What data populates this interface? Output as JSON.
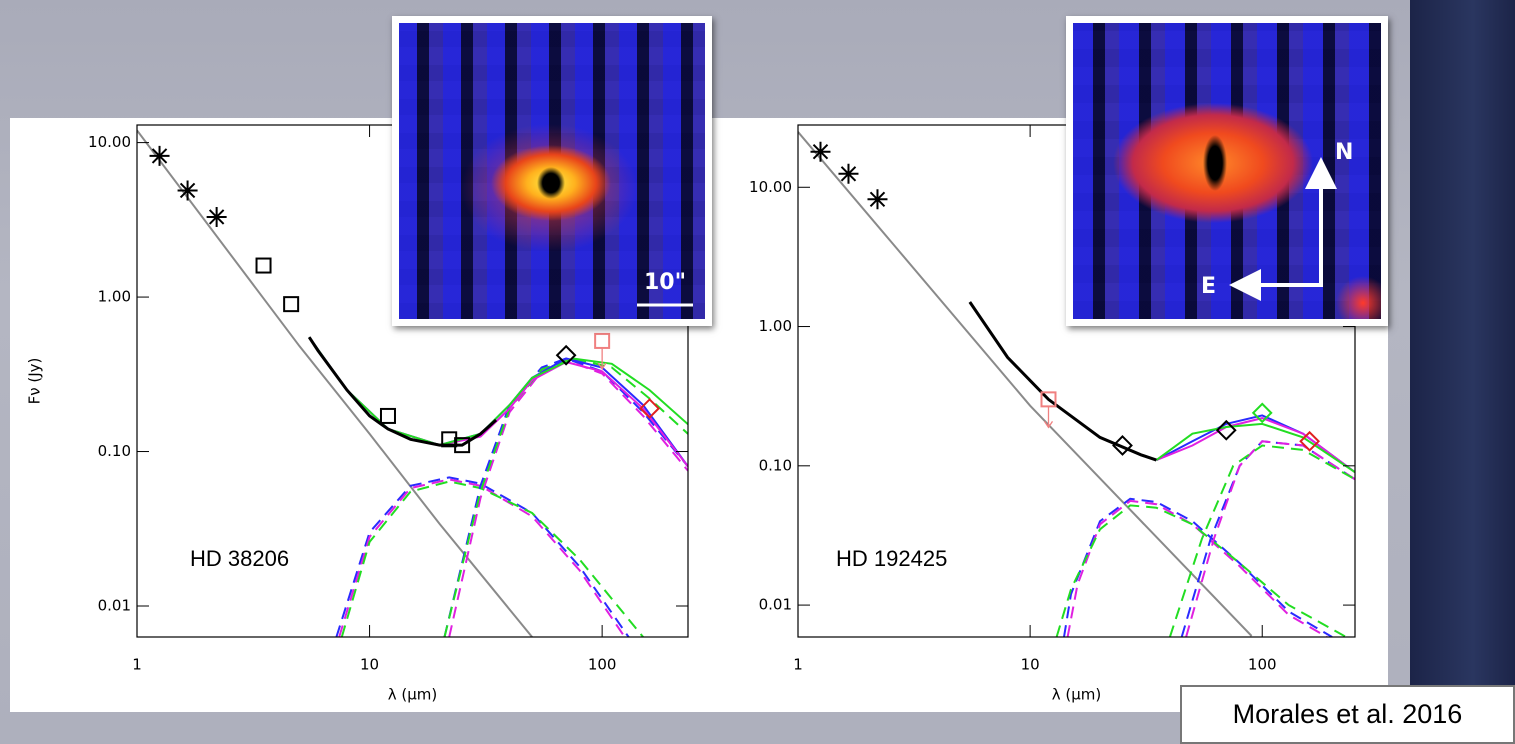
{
  "chart_data": [
    {
      "type": "line",
      "xlabel": "λ (μm)",
      "ylabel": "Fν (Jy)",
      "annotation": "HD 38206",
      "xscale": "log",
      "yscale": "log",
      "xlim": [
        1,
        234
      ],
      "ylim": [
        0.0063,
        13
      ],
      "xticks": [
        1,
        10,
        100
      ],
      "yticks": [
        {
          "value": 10,
          "label": "10.00"
        },
        {
          "value": 1,
          "label": "1.00"
        },
        {
          "value": 0.1,
          "label": "0.10"
        },
        {
          "value": 0.01,
          "label": "0.01"
        }
      ],
      "series": [
        {
          "color": "#8a8a8a",
          "style": "line",
          "x": [
            1,
            5,
            10,
            20,
            50
          ],
          "values": [
            12,
            0.48,
            0.13,
            0.034,
            0.0063
          ]
        },
        {
          "color": "#2a2aff",
          "style": "dashed",
          "x": [
            7.2,
            10,
            15,
            22,
            30,
            50,
            80,
            130
          ],
          "values": [
            0.0063,
            0.03,
            0.06,
            0.068,
            0.062,
            0.04,
            0.018,
            0.0063
          ]
        },
        {
          "color": "#e020e0",
          "style": "dashed",
          "x": [
            7.4,
            10,
            15,
            22,
            30,
            50,
            80,
            125
          ],
          "values": [
            0.0063,
            0.028,
            0.058,
            0.066,
            0.06,
            0.038,
            0.017,
            0.0063
          ]
        },
        {
          "color": "#22dd22",
          "style": "dashed",
          "x": [
            7.6,
            10,
            15,
            22,
            30,
            50,
            80,
            150
          ],
          "values": [
            0.0063,
            0.026,
            0.055,
            0.064,
            0.058,
            0.04,
            0.02,
            0.0063
          ]
        },
        {
          "color": "#2a2aff",
          "style": "dashed",
          "x": [
            21,
            30,
            40,
            55,
            70,
            100,
            150,
            234
          ],
          "values": [
            0.0063,
            0.06,
            0.2,
            0.35,
            0.4,
            0.33,
            0.18,
            0.08
          ]
        },
        {
          "color": "#e020e0",
          "style": "dashed",
          "x": [
            22,
            30,
            40,
            55,
            70,
            100,
            150,
            234
          ],
          "values": [
            0.0063,
            0.05,
            0.18,
            0.33,
            0.39,
            0.32,
            0.17,
            0.075
          ]
        },
        {
          "color": "#22dd22",
          "style": "dashed",
          "x": [
            21,
            30,
            40,
            55,
            75,
            110,
            160,
            234
          ],
          "values": [
            0.0063,
            0.055,
            0.19,
            0.34,
            0.4,
            0.35,
            0.22,
            0.13
          ]
        },
        {
          "color": "#2a2aff",
          "style": "line",
          "x": [
            5.5,
            8,
            12,
            20,
            30,
            40,
            50,
            70,
            100,
            150,
            234
          ],
          "values": [
            0.55,
            0.25,
            0.14,
            0.11,
            0.13,
            0.2,
            0.3,
            0.4,
            0.35,
            0.2,
            0.08
          ]
        },
        {
          "color": "#e020e0",
          "style": "line",
          "x": [
            5.5,
            8,
            12,
            20,
            30,
            40,
            50,
            70,
            100,
            150,
            234
          ],
          "values": [
            0.55,
            0.25,
            0.14,
            0.11,
            0.125,
            0.19,
            0.29,
            0.38,
            0.33,
            0.19,
            0.08
          ]
        },
        {
          "color": "#22dd22",
          "style": "line",
          "x": [
            5.5,
            8,
            12,
            20,
            30,
            40,
            50,
            75,
            110,
            160,
            234
          ],
          "values": [
            0.55,
            0.25,
            0.14,
            0.11,
            0.13,
            0.2,
            0.3,
            0.4,
            0.37,
            0.25,
            0.15
          ]
        },
        {
          "color": "#000000",
          "style": "line",
          "x": [
            5.5,
            6,
            8,
            10,
            12,
            15,
            20,
            25,
            30,
            35
          ],
          "values": [
            0.55,
            0.45,
            0.25,
            0.17,
            0.14,
            0.12,
            0.11,
            0.11,
            0.13,
            0.16
          ]
        },
        {
          "color": "#000000",
          "style": "marker",
          "marker": "asterisk",
          "x": [
            1.25,
            1.65,
            2.2
          ],
          "values": [
            8.2,
            4.9,
            3.3
          ]
        },
        {
          "color": "#000000",
          "style": "marker",
          "marker": "square",
          "x": [
            3.5,
            4.6,
            12,
            22,
            25
          ],
          "values": [
            1.6,
            0.9,
            0.17,
            0.12,
            0.11
          ]
        },
        {
          "color": "#000000",
          "style": "marker",
          "marker": "diamond",
          "x": [
            70
          ],
          "values": [
            0.42
          ]
        },
        {
          "color": "#e02020",
          "style": "marker",
          "marker": "diamond",
          "x": [
            160
          ],
          "values": [
            0.19
          ]
        },
        {
          "color": "#f08080",
          "style": "marker",
          "marker": "square",
          "upper_limit": true,
          "x": [
            100
          ],
          "values": [
            0.52
          ]
        }
      ]
    },
    {
      "type": "line",
      "xlabel": "λ (μm)",
      "annotation": "HD 192425",
      "xscale": "log",
      "yscale": "log",
      "xlim": [
        1,
        251
      ],
      "ylim": [
        0.0059,
        28
      ],
      "xticks": [
        1,
        10,
        100
      ],
      "yticks": [
        {
          "value": 10,
          "label": "10.00"
        },
        {
          "value": 1,
          "label": "1.00"
        },
        {
          "value": 0.1,
          "label": "0.10"
        },
        {
          "value": 0.01,
          "label": "0.01"
        }
      ],
      "series": [
        {
          "color": "#8a8a8a",
          "style": "line",
          "x": [
            1,
            10,
            90
          ],
          "values": [
            25,
            0.27,
            0.006
          ]
        },
        {
          "color": "#2a2aff",
          "style": "dashed",
          "x": [
            14,
            15,
            20,
            27,
            35,
            50,
            80,
            130,
            200
          ],
          "values": [
            0.0059,
            0.012,
            0.04,
            0.058,
            0.055,
            0.04,
            0.02,
            0.009,
            0.0059
          ]
        },
        {
          "color": "#e020e0",
          "style": "dashed",
          "x": [
            14.5,
            16,
            20,
            27,
            35,
            50,
            80,
            130,
            190
          ],
          "values": [
            0.0059,
            0.014,
            0.038,
            0.056,
            0.053,
            0.038,
            0.019,
            0.0085,
            0.0059
          ]
        },
        {
          "color": "#22dd22",
          "style": "dashed",
          "x": [
            13,
            15,
            20,
            27,
            35,
            50,
            80,
            130,
            230
          ],
          "values": [
            0.0059,
            0.013,
            0.035,
            0.052,
            0.05,
            0.038,
            0.02,
            0.01,
            0.0059
          ]
        },
        {
          "color": "#2a2aff",
          "style": "dashed",
          "x": [
            45,
            60,
            80,
            100,
            150,
            251
          ],
          "values": [
            0.0059,
            0.03,
            0.1,
            0.15,
            0.14,
            0.08
          ]
        },
        {
          "color": "#e020e0",
          "style": "dashed",
          "x": [
            47,
            62,
            80,
            100,
            150,
            251
          ],
          "values": [
            0.0059,
            0.03,
            0.1,
            0.15,
            0.14,
            0.08
          ]
        },
        {
          "color": "#22dd22",
          "style": "dashed",
          "x": [
            40,
            55,
            75,
            100,
            150,
            251
          ],
          "values": [
            0.0059,
            0.03,
            0.1,
            0.14,
            0.13,
            0.08
          ]
        },
        {
          "color": "#2a2aff",
          "style": "line",
          "x": [
            35,
            50,
            70,
            100,
            150,
            251
          ],
          "values": [
            0.11,
            0.15,
            0.2,
            0.23,
            0.17,
            0.09
          ]
        },
        {
          "color": "#e020e0",
          "style": "line",
          "x": [
            35,
            50,
            70,
            100,
            150,
            251
          ],
          "values": [
            0.11,
            0.14,
            0.19,
            0.22,
            0.17,
            0.09
          ]
        },
        {
          "color": "#22dd22",
          "style": "line",
          "x": [
            35,
            50,
            70,
            100,
            150,
            251
          ],
          "values": [
            0.11,
            0.17,
            0.19,
            0.2,
            0.16,
            0.09
          ]
        },
        {
          "color": "#000000",
          "style": "line",
          "x": [
            5.5,
            8,
            12,
            20,
            30,
            35
          ],
          "values": [
            1.5,
            0.6,
            0.3,
            0.16,
            0.12,
            0.11
          ]
        },
        {
          "color": "#000000",
          "style": "marker",
          "marker": "asterisk",
          "x": [
            1.25,
            1.65,
            2.2
          ],
          "values": [
            18,
            12.5,
            8.2
          ]
        },
        {
          "color": "#000000",
          "style": "marker",
          "marker": "diamond",
          "x": [
            25,
            70
          ],
          "values": [
            0.14,
            0.18
          ]
        },
        {
          "color": "#22dd22",
          "style": "marker",
          "marker": "diamond",
          "x": [
            100
          ],
          "values": [
            0.24
          ]
        },
        {
          "color": "#e02020",
          "style": "marker",
          "marker": "diamond",
          "x": [
            160
          ],
          "values": [
            0.15
          ]
        },
        {
          "color": "#f08080",
          "style": "marker",
          "marker": "square",
          "upper_limit": true,
          "x": [
            12
          ],
          "values": [
            0.3
          ]
        }
      ]
    }
  ],
  "insets": [
    {
      "scale_label": "10\""
    },
    {
      "north": "N",
      "east": "E"
    }
  ],
  "citation": "Morales et al. 2016"
}
